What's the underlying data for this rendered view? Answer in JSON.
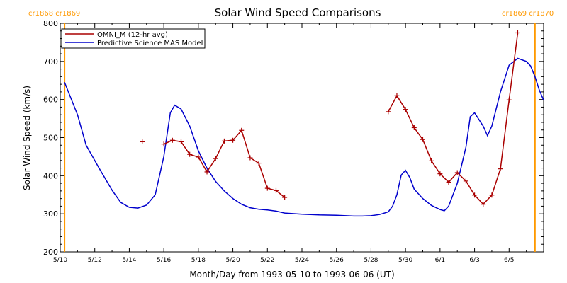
{
  "chart_data": {
    "type": "line",
    "title": "Solar Wind Speed Comparisons",
    "xlabel": "Month/Day from 1993-05-10 to 1993-06-06 (UT)",
    "ylabel": "Solar Wind Speed (km/s)",
    "xlim": [
      "1993-05-10",
      "1993-06-06"
    ],
    "ylim": [
      200,
      800
    ],
    "yticks": [
      200,
      300,
      400,
      500,
      600,
      700,
      800
    ],
    "xticks": [
      {
        "date": "1993-05-10",
        "label": "5/10"
      },
      {
        "date": "1993-05-12",
        "label": "5/12"
      },
      {
        "date": "1993-05-14",
        "label": "5/14"
      },
      {
        "date": "1993-05-16",
        "label": "5/16"
      },
      {
        "date": "1993-05-18",
        "label": "5/18"
      },
      {
        "date": "1993-05-20",
        "label": "5/20"
      },
      {
        "date": "1993-05-22",
        "label": "5/22"
      },
      {
        "date": "1993-05-24",
        "label": "5/24"
      },
      {
        "date": "1993-05-26",
        "label": "5/26"
      },
      {
        "date": "1993-05-28",
        "label": "5/28"
      },
      {
        "date": "1993-05-30",
        "label": "5/30"
      },
      {
        "date": "1993-06-01",
        "label": "6/1"
      },
      {
        "date": "1993-06-03",
        "label": "6/3"
      },
      {
        "date": "1993-06-05",
        "label": "6/5"
      }
    ],
    "carrington_markers": [
      {
        "date": "1993-05-10 06:00",
        "labels": [
          "cr1868",
          "cr1869"
        ],
        "side": "left"
      },
      {
        "date": "1993-06-06 12:00",
        "labels": [
          "cr1869",
          "cr1870"
        ],
        "side": "right"
      }
    ],
    "legend_position": "top-left",
    "colors": {
      "omni": "#aa0000",
      "mas": "#0000cc",
      "carrington": "#ff9900"
    },
    "series": [
      {
        "name": "OMNI_M (12-hr avg)",
        "style": "line-plus",
        "segments": [
          [
            [
              "1993-05-14 18:00",
              489
            ]
          ],
          [
            [
              "1993-05-16 00:00",
              483
            ],
            [
              "1993-05-16 12:00",
              493
            ],
            [
              "1993-05-17 00:00",
              489
            ],
            [
              "1993-05-17 12:00",
              456
            ],
            [
              "1993-05-18 00:00",
              449
            ],
            [
              "1993-05-18 12:00",
              410
            ],
            [
              "1993-05-19 00:00",
              445
            ],
            [
              "1993-05-19 12:00",
              491
            ],
            [
              "1993-05-20 00:00",
              493
            ],
            [
              "1993-05-20 12:00",
              519
            ],
            [
              "1993-05-21 00:00",
              447
            ],
            [
              "1993-05-21 12:00",
              433
            ],
            [
              "1993-05-22 00:00",
              367
            ],
            [
              "1993-05-22 12:00",
              361
            ],
            [
              "1993-05-23 00:00",
              343
            ]
          ],
          [
            [
              "1993-05-29 00:00",
              568
            ],
            [
              "1993-05-29 12:00",
              610
            ],
            [
              "1993-05-30 00:00",
              574
            ],
            [
              "1993-05-30 12:00",
              526
            ],
            [
              "1993-05-31 00:00",
              495
            ],
            [
              "1993-05-31 12:00",
              439
            ],
            [
              "1993-06-01 00:00",
              405
            ],
            [
              "1993-06-01 12:00",
              383
            ],
            [
              "1993-06-02 00:00",
              408
            ],
            [
              "1993-06-02 12:00",
              386
            ],
            [
              "1993-06-03 00:00",
              349
            ],
            [
              "1993-06-03 12:00",
              325
            ],
            [
              "1993-06-04 00:00",
              349
            ],
            [
              "1993-06-04 12:00",
              418
            ],
            [
              "1993-06-05 00:00",
              599
            ],
            [
              "1993-06-05 12:00",
              775
            ]
          ]
        ]
      },
      {
        "name": "Predictive Science MAS Model",
        "style": "line",
        "points": [
          [
            "1993-05-10 06:00",
            645
          ],
          [
            "1993-05-11 00:00",
            560
          ],
          [
            "1993-05-11 12:00",
            480
          ],
          [
            "1993-05-12 06:00",
            420
          ],
          [
            "1993-05-13 00:00",
            362
          ],
          [
            "1993-05-13 12:00",
            330
          ],
          [
            "1993-05-14 00:00",
            317
          ],
          [
            "1993-05-14 12:00",
            315
          ],
          [
            "1993-05-15 00:00",
            323
          ],
          [
            "1993-05-15 12:00",
            350
          ],
          [
            "1993-05-16 00:00",
            450
          ],
          [
            "1993-05-16 09:00",
            565
          ],
          [
            "1993-05-16 15:00",
            585
          ],
          [
            "1993-05-17 00:00",
            575
          ],
          [
            "1993-05-17 12:00",
            530
          ],
          [
            "1993-05-18 00:00",
            465
          ],
          [
            "1993-05-18 12:00",
            420
          ],
          [
            "1993-05-19 00:00",
            385
          ],
          [
            "1993-05-19 12:00",
            360
          ],
          [
            "1993-05-20 00:00",
            340
          ],
          [
            "1993-05-20 12:00",
            325
          ],
          [
            "1993-05-21 00:00",
            316
          ],
          [
            "1993-05-21 12:00",
            312
          ],
          [
            "1993-05-22 00:00",
            310
          ],
          [
            "1993-05-22 12:00",
            307
          ],
          [
            "1993-05-23 00:00",
            302
          ],
          [
            "1993-05-24 00:00",
            299
          ],
          [
            "1993-05-25 00:00",
            297
          ],
          [
            "1993-05-26 00:00",
            296
          ],
          [
            "1993-05-27 00:00",
            294
          ],
          [
            "1993-05-27 12:00",
            294
          ],
          [
            "1993-05-28 00:00",
            295
          ],
          [
            "1993-05-28 12:00",
            298
          ],
          [
            "1993-05-29 00:00",
            305
          ],
          [
            "1993-05-29 06:00",
            320
          ],
          [
            "1993-05-29 12:00",
            350
          ],
          [
            "1993-05-29 18:00",
            402
          ],
          [
            "1993-05-30 00:00",
            414
          ],
          [
            "1993-05-30 06:00",
            395
          ],
          [
            "1993-05-30 12:00",
            365
          ],
          [
            "1993-05-31 00:00",
            340
          ],
          [
            "1993-05-31 12:00",
            322
          ],
          [
            "1993-06-01 00:00",
            311
          ],
          [
            "1993-06-01 06:00",
            308
          ],
          [
            "1993-06-01 12:00",
            320
          ],
          [
            "1993-06-02 00:00",
            380
          ],
          [
            "1993-06-02 12:00",
            475
          ],
          [
            "1993-06-02 18:00",
            555
          ],
          [
            "1993-06-03 00:00",
            565
          ],
          [
            "1993-06-03 12:00",
            530
          ],
          [
            "1993-06-03 18:00",
            505
          ],
          [
            "1993-06-04 00:00",
            530
          ],
          [
            "1993-06-04 12:00",
            620
          ],
          [
            "1993-06-05 00:00",
            690
          ],
          [
            "1993-06-05 12:00",
            708
          ],
          [
            "1993-06-06 00:00",
            700
          ],
          [
            "1993-06-06 06:00",
            688
          ],
          [
            "1993-06-06 12:00",
            660
          ],
          [
            "1993-06-06 18:00",
            625
          ],
          [
            "1993-06-07 00:00",
            598
          ]
        ]
      }
    ]
  }
}
